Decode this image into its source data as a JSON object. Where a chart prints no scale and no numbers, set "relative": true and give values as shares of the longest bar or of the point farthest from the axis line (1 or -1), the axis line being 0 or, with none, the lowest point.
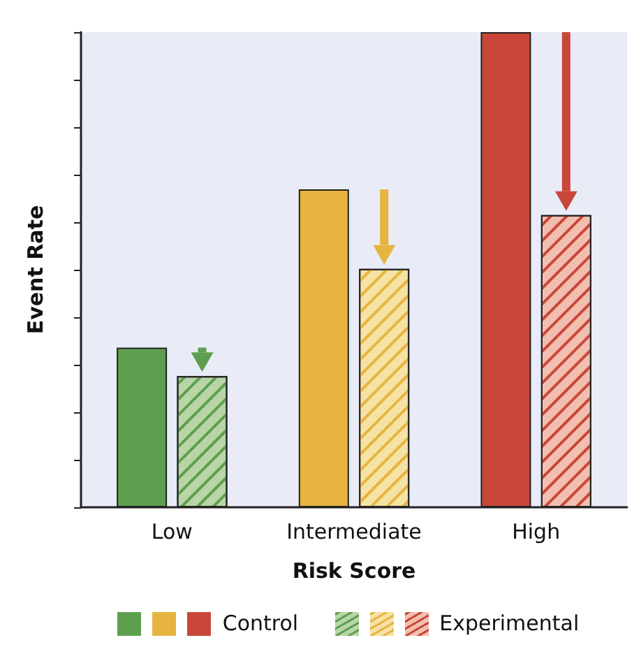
{
  "chart_data": {
    "type": "bar",
    "xlabel": "Risk Score",
    "ylabel": "Event Rate",
    "relative": true,
    "categories": [
      "Low",
      "Intermediate",
      "High"
    ],
    "series": [
      {
        "name": "Control",
        "colors": [
          "#5e9f4f",
          "#e7b440",
          "#c9473a"
        ],
        "values": [
          0.336,
          0.669,
          1
        ]
      },
      {
        "name": "Experimental",
        "colors": [
          "#b8d5a8",
          "#f6e2a4",
          "#f2bfae"
        ],
        "values": [
          0.276,
          0.502,
          0.615
        ]
      }
    ],
    "legend": "bottom",
    "grid": false
  }
}
